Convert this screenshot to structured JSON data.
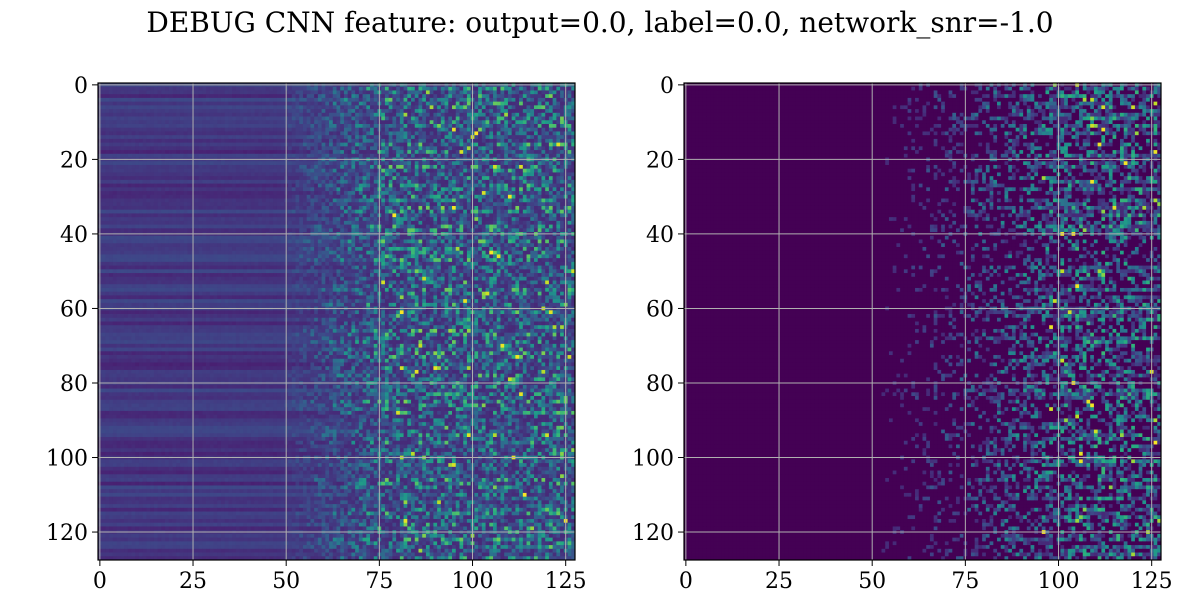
{
  "title": "DEBUG CNN feature: output=0.0, label=0.0, network_snr=-1.0",
  "chart_data": [
    {
      "type": "heatmap",
      "colormap": "viridis",
      "rows": 128,
      "cols": 128,
      "xlim": [
        0,
        127
      ],
      "ylim": [
        127,
        0
      ],
      "xticks": [
        "0",
        "25",
        "50",
        "75",
        "100",
        "125"
      ],
      "yticks": [
        "0",
        "20",
        "40",
        "60",
        "80",
        "100",
        "120"
      ],
      "grid": true,
      "description_of_values": "row-banded dark purple (0.1-0.25) for columns 0-50, transitioning to noisy speckle (0.1-0.7) with occasional bright pixels beyond column 70"
    },
    {
      "type": "heatmap",
      "colormap": "viridis",
      "rows": 128,
      "cols": 128,
      "xlim": [
        0,
        127
      ],
      "ylim": [
        127,
        0
      ],
      "xticks": [
        "0",
        "25",
        "50",
        "75",
        "100",
        "125"
      ],
      "yticks": [
        "0",
        "20",
        "40",
        "60",
        "80",
        "100",
        "120"
      ],
      "grid": true,
      "description_of_values": "zero (darkest) for columns 0-60, streaky horizontal activations increasing toward right edge (0.1-0.9)"
    }
  ],
  "colors": {
    "grid": "#b0b0b0",
    "viridis_low": "#440154",
    "viridis_high": "#fde725"
  }
}
